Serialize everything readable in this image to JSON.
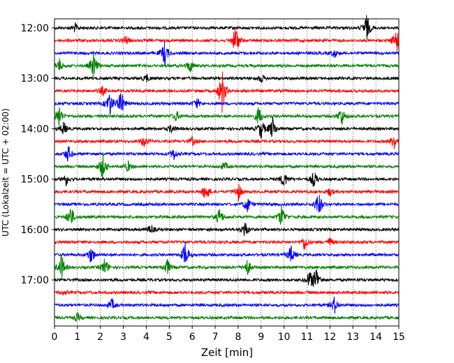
{
  "chart_data": {
    "type": "line",
    "subtype": "helicorder",
    "xlabel": "Zeit  [min]",
    "ylabel": "UTC (Lokalzeit = UTC + 02:00)",
    "xlim": [
      0,
      15
    ],
    "x_ticks": [
      "0",
      "1",
      "2",
      "3",
      "4",
      "5",
      "6",
      "7",
      "8",
      "9",
      "10",
      "11",
      "12",
      "13",
      "14",
      "15"
    ],
    "y_tick_labels": [
      "12:00",
      "13:00",
      "14:00",
      "15:00",
      "16:00",
      "17:00"
    ],
    "row_interval_min": 15,
    "row_count": 24,
    "vertical_grid": "dotted",
    "colors": [
      "#000000",
      "#ff0000",
      "#0000ff",
      "#008000"
    ],
    "row_events": [
      [
        [
          0.9,
          0.5
        ],
        [
          13.6,
          1.6
        ]
      ],
      [
        [
          7.9,
          2.0
        ],
        [
          14.9,
          1.6
        ],
        [
          3.1,
          0.6
        ]
      ],
      [
        [
          4.8,
          1.5
        ],
        [
          12.2,
          0.5
        ]
      ],
      [
        [
          0.2,
          0.8
        ],
        [
          1.7,
          1.6
        ],
        [
          5.9,
          0.8
        ]
      ],
      [
        [
          4.0,
          0.5
        ],
        [
          9.0,
          0.5
        ]
      ],
      [
        [
          7.3,
          2.6
        ],
        [
          2.1,
          0.5
        ]
      ],
      [
        [
          2.4,
          1.6
        ],
        [
          2.9,
          1.6
        ],
        [
          6.2,
          0.6
        ]
      ],
      [
        [
          0.2,
          1.4
        ],
        [
          5.3,
          0.6
        ],
        [
          8.9,
          1.2
        ],
        [
          12.5,
          1.2
        ]
      ],
      [
        [
          0.4,
          0.8
        ],
        [
          9.0,
          1.2
        ],
        [
          9.5,
          1.4
        ],
        [
          5.1,
          0.5
        ]
      ],
      [
        [
          3.9,
          0.7
        ],
        [
          6.0,
          0.5
        ],
        [
          14.8,
          1.0
        ]
      ],
      [
        [
          0.6,
          1.0
        ],
        [
          5.2,
          0.7
        ]
      ],
      [
        [
          2.1,
          1.6
        ],
        [
          3.2,
          0.6
        ],
        [
          7.4,
          0.5
        ]
      ],
      [
        [
          0.5,
          0.7
        ],
        [
          10.0,
          1.0
        ],
        [
          11.3,
          1.0
        ]
      ],
      [
        [
          6.6,
          1.2
        ],
        [
          8.0,
          1.1
        ],
        [
          12.0,
          0.5
        ]
      ],
      [
        [
          8.4,
          1.0
        ],
        [
          11.5,
          1.6
        ]
      ],
      [
        [
          0.7,
          1.4
        ],
        [
          7.2,
          1.1
        ],
        [
          9.9,
          1.4
        ]
      ],
      [
        [
          4.2,
          0.6
        ],
        [
          8.3,
          1.0
        ]
      ],
      [
        [
          10.9,
          1.0
        ],
        [
          12.0,
          0.5
        ]
      ],
      [
        [
          1.6,
          1.1
        ],
        [
          5.7,
          1.6
        ],
        [
          10.3,
          1.1
        ]
      ],
      [
        [
          0.3,
          1.6
        ],
        [
          2.2,
          1.1
        ],
        [
          4.9,
          1.0
        ],
        [
          8.4,
          1.0
        ]
      ],
      [
        [
          11.1,
          1.0
        ],
        [
          11.4,
          1.6
        ]
      ],
      [
        [
          0.4,
          0.3
        ]
      ],
      [
        [
          2.5,
          0.7
        ],
        [
          12.2,
          1.0
        ]
      ],
      [
        [
          1.0,
          0.5
        ]
      ]
    ]
  }
}
